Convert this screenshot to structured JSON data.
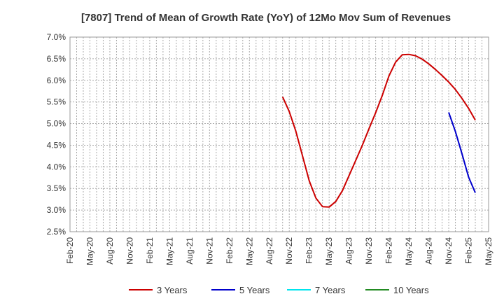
{
  "chart_data": {
    "type": "line",
    "title": "[7807]  Trend of Mean of Growth Rate (YoY) of 12Mo Mov Sum of Revenues",
    "xlabel": "",
    "ylabel": "",
    "ylim": [
      2.5,
      7.0
    ],
    "yticks": [
      "7.0%",
      "6.5%",
      "6.0%",
      "5.5%",
      "5.0%",
      "4.5%",
      "4.0%",
      "3.5%",
      "3.0%",
      "2.5%"
    ],
    "ytick_values": [
      7.0,
      6.5,
      6.0,
      5.5,
      5.0,
      4.5,
      4.0,
      3.5,
      3.0,
      2.5
    ],
    "x_start": "Feb-20",
    "x_end": "May-25",
    "xticks": [
      "Feb-20",
      "May-20",
      "Aug-20",
      "Nov-20",
      "Feb-21",
      "May-21",
      "Aug-21",
      "Nov-21",
      "Feb-22",
      "May-22",
      "Aug-22",
      "Nov-22",
      "Feb-23",
      "May-23",
      "Aug-23",
      "Nov-23",
      "Feb-24",
      "May-24",
      "Aug-24",
      "Nov-24",
      "Feb-25",
      "May-25"
    ],
    "grid": true,
    "legend_position": "bottom",
    "series": [
      {
        "name": "3 Years",
        "color": "#cc0000",
        "start": "Oct-22",
        "values": [
          5.62,
          5.28,
          4.82,
          4.25,
          3.68,
          3.28,
          3.08,
          3.07,
          3.2,
          3.45,
          3.8,
          4.15,
          4.5,
          4.88,
          5.25,
          5.65,
          6.1,
          6.42,
          6.59,
          6.6,
          6.57,
          6.49,
          6.38,
          6.25,
          6.11,
          5.96,
          5.79,
          5.58,
          5.35,
          5.08
        ]
      },
      {
        "name": "5 Years",
        "color": "#0000cc",
        "start": "Nov-24",
        "values": [
          5.26,
          4.82,
          4.3,
          3.76,
          3.4
        ]
      },
      {
        "name": "7 Years",
        "color": "#00e5ee",
        "start": "",
        "values": []
      },
      {
        "name": "10 Years",
        "color": "#228b22",
        "start": "",
        "values": []
      }
    ]
  }
}
